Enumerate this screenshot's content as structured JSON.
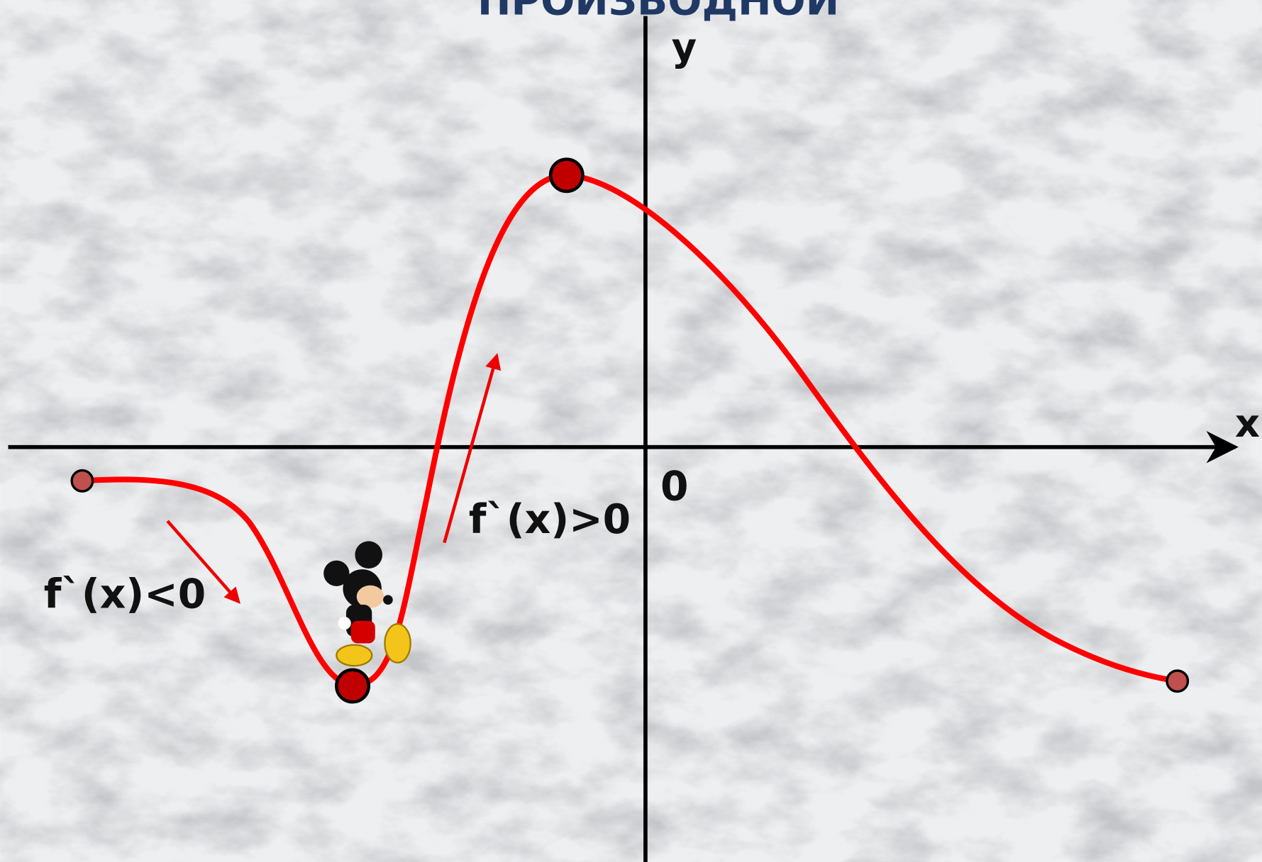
{
  "title": "ПРОИЗВОДНОЙ",
  "axes": {
    "x": "x",
    "y": "y",
    "origin": "0"
  },
  "annotations": {
    "decreasing": "f`(x)<0",
    "increasing": "f`(x)>0"
  }
}
